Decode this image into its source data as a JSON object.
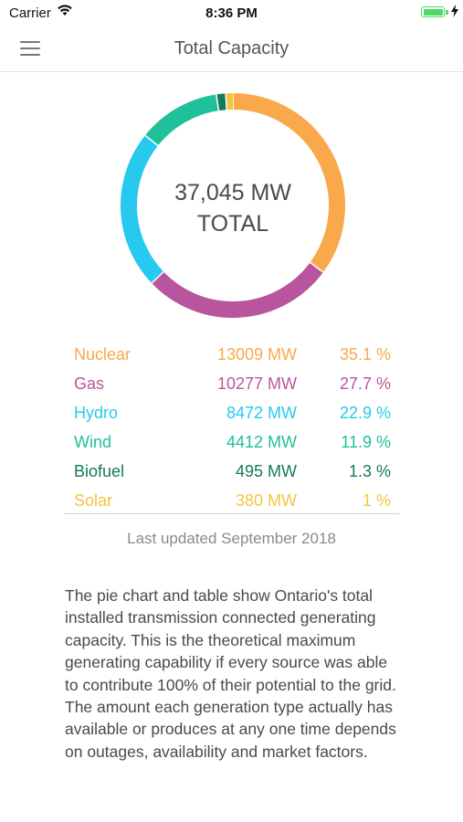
{
  "status_bar": {
    "carrier": "Carrier",
    "time": "8:36 PM",
    "battery_color": "#4cd964"
  },
  "header": {
    "title": "Total Capacity",
    "menu_icon": "hamburger-menu-icon"
  },
  "chart_data": {
    "type": "pie",
    "variant": "donut",
    "center_value": "37,045 MW",
    "center_label": "TOTAL",
    "categories": [
      "Nuclear",
      "Gas",
      "Hydro",
      "Wind",
      "Biofuel",
      "Solar"
    ],
    "values": [
      13009,
      10277,
      8472,
      4412,
      495,
      380
    ],
    "colors": [
      "#f9a94b",
      "#b9559e",
      "#27c9ef",
      "#20c09a",
      "#137a5e",
      "#f4c441"
    ]
  },
  "table": {
    "rows": [
      {
        "name": "Nuclear",
        "mw": "13009 MW",
        "pct": "35.1 %",
        "color": "#f9a94b"
      },
      {
        "name": "Gas",
        "mw": "10277 MW",
        "pct": "27.7 %",
        "color": "#b9559e"
      },
      {
        "name": "Hydro",
        "mw": "8472 MW",
        "pct": "22.9 %",
        "color": "#27c9ef"
      },
      {
        "name": "Wind",
        "mw": "4412 MW",
        "pct": "11.9 %",
        "color": "#20c09a"
      },
      {
        "name": "Biofuel",
        "mw": "495 MW",
        "pct": "1.3 %",
        "color": "#137a5e"
      },
      {
        "name": "Solar",
        "mw": "380 MW",
        "pct": "1 %",
        "color": "#f4c441"
      }
    ]
  },
  "updated": "Last updated September 2018",
  "description": "The pie chart and table show Ontario's total installed transmission connected generating capacity. This is the theoretical maximum generating capability if every source was able to contribute 100% of their potential to the grid. The amount each generation type actually has available or produces at any one time depends on outages, availability and market factors."
}
